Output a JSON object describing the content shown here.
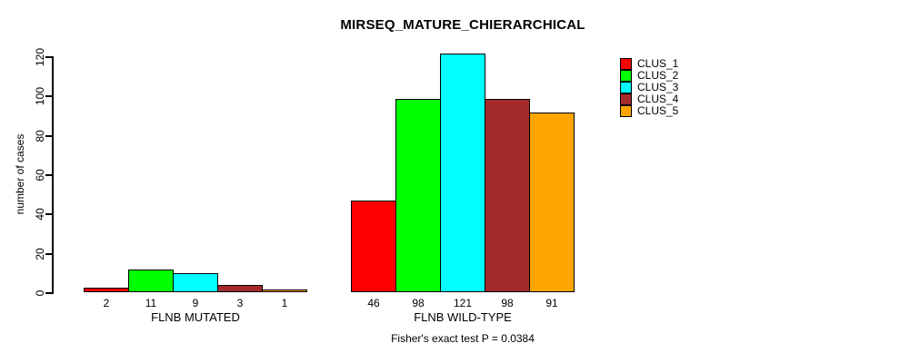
{
  "chart_data": {
    "type": "bar",
    "title": "MIRSEQ_MATURE_CHIERARCHICAL",
    "xlabel": "",
    "ylabel": "number of cases",
    "categories": [
      "FLNB MUTATED",
      "FLNB WILD-TYPE"
    ],
    "series": [
      {
        "name": "CLUS_1",
        "color": "#FF0000",
        "values": [
          2,
          46
        ]
      },
      {
        "name": "CLUS_2",
        "color": "#00FF00",
        "values": [
          11,
          98
        ]
      },
      {
        "name": "CLUS_3",
        "color": "#00FFFF",
        "values": [
          9,
          121
        ]
      },
      {
        "name": "CLUS_4",
        "color": "#A52A2A",
        "values": [
          3,
          98
        ]
      },
      {
        "name": "CLUS_5",
        "color": "#FFA500",
        "values": [
          1,
          91
        ]
      }
    ],
    "bar_value_labels": [
      [
        "2",
        "11",
        "9",
        "3",
        "1"
      ],
      [
        "46",
        "98",
        "121",
        "98",
        "91"
      ]
    ],
    "yticks": [
      0,
      20,
      40,
      60,
      80,
      100,
      120
    ],
    "ylim": [
      0,
      121
    ],
    "grid": false,
    "legend_position": "topright",
    "annotation": "Fisher's exact test P = 0.0384"
  }
}
